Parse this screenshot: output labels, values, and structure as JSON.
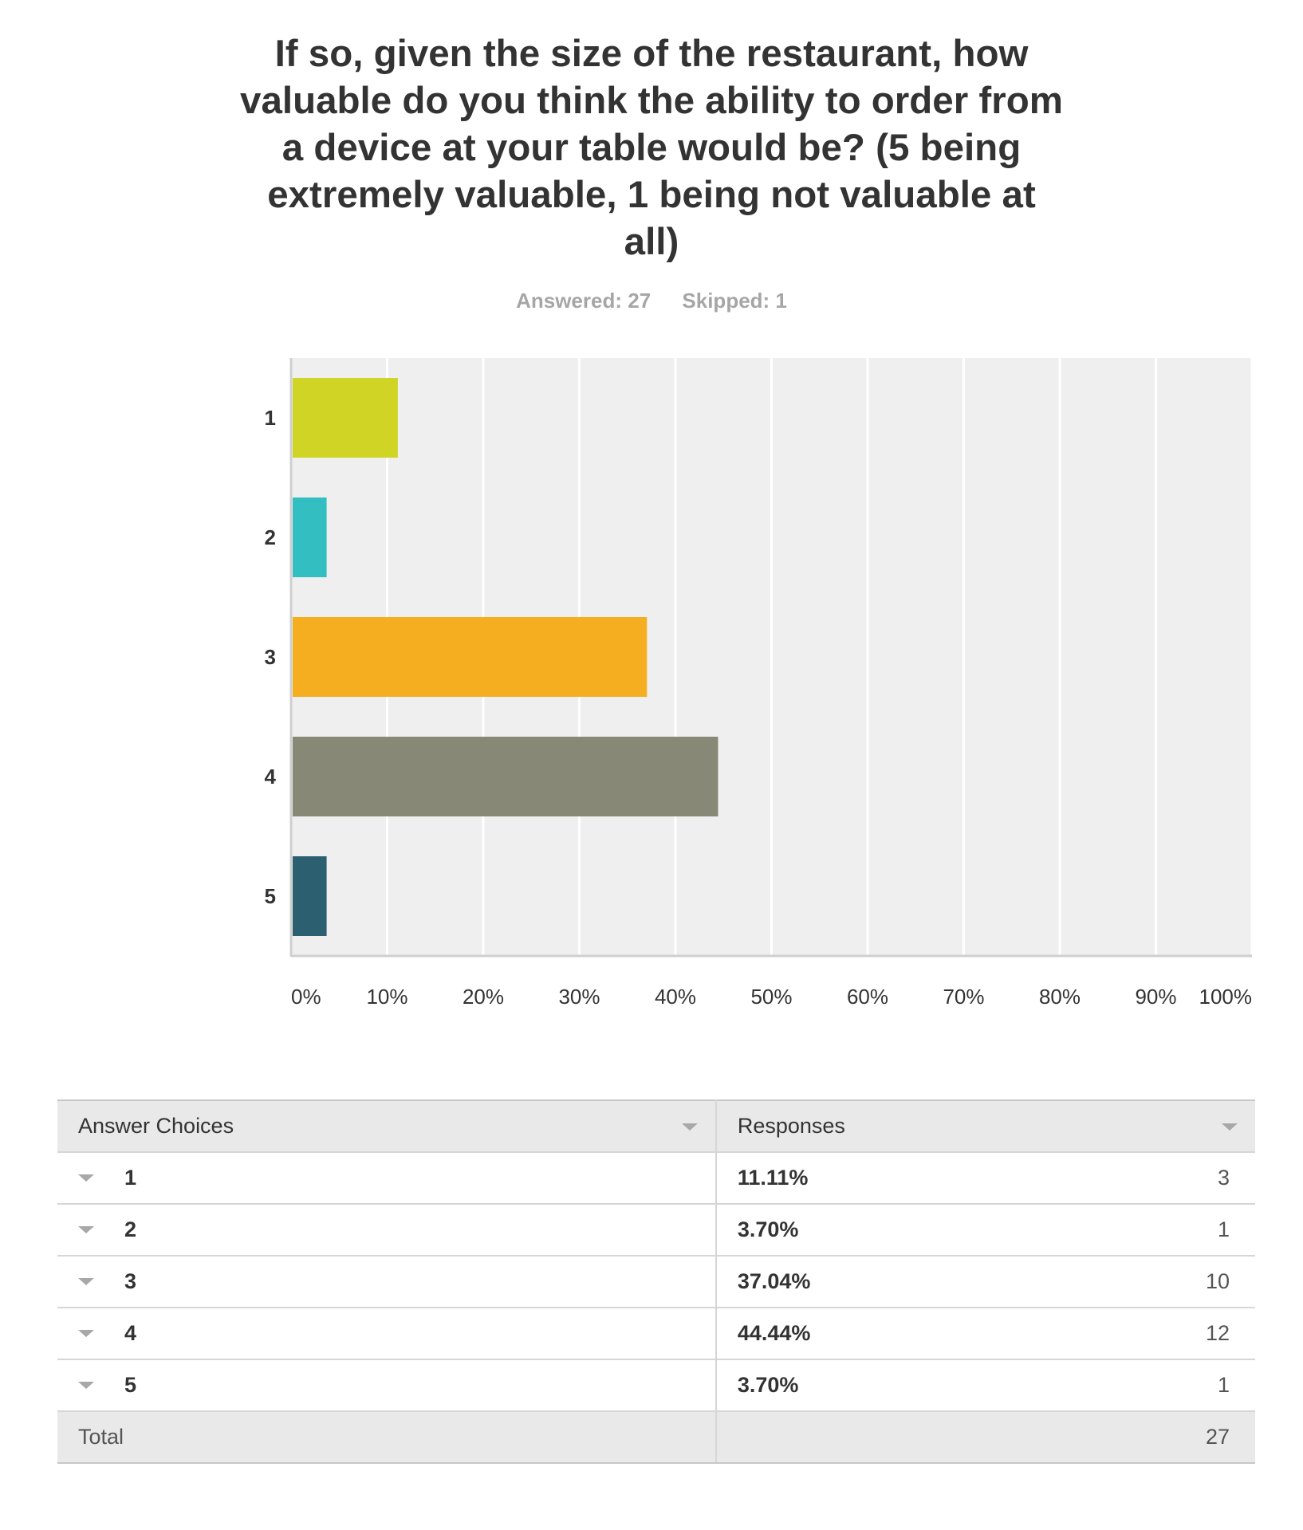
{
  "question": {
    "title": "If so, given the size of the restaurant, how valuable do you think the ability to order from a device at your table would be? (5 being extremely valuable, 1 being not valuable at all)"
  },
  "meta": {
    "answered": "Answered: 27",
    "skipped": "Skipped: 1"
  },
  "chart_data": {
    "type": "bar",
    "orientation": "horizontal",
    "categories": [
      "1",
      "2",
      "3",
      "4",
      "5"
    ],
    "values": [
      11.11,
      3.7,
      37.04,
      44.44,
      3.7
    ],
    "colors": [
      "#d0d525",
      "#33bec1",
      "#f5ae20",
      "#888877",
      "#2c5f6f"
    ],
    "xlim": [
      0,
      100
    ],
    "x_ticks": [
      "0%",
      "10%",
      "20%",
      "30%",
      "40%",
      "50%",
      "60%",
      "70%",
      "80%",
      "90%",
      "100%"
    ],
    "grid": true,
    "background": "#efefef",
    "title": "",
    "xlabel": "",
    "ylabel": ""
  },
  "table": {
    "headers": [
      "Answer Choices",
      "Responses"
    ],
    "rows": [
      {
        "choice": "1",
        "percent": "11.11%",
        "count": "3"
      },
      {
        "choice": "2",
        "percent": "3.70%",
        "count": "1"
      },
      {
        "choice": "3",
        "percent": "37.04%",
        "count": "10"
      },
      {
        "choice": "4",
        "percent": "44.44%",
        "count": "12"
      },
      {
        "choice": "5",
        "percent": "3.70%",
        "count": "1"
      }
    ],
    "total_label": "Total",
    "total_count": "27"
  }
}
